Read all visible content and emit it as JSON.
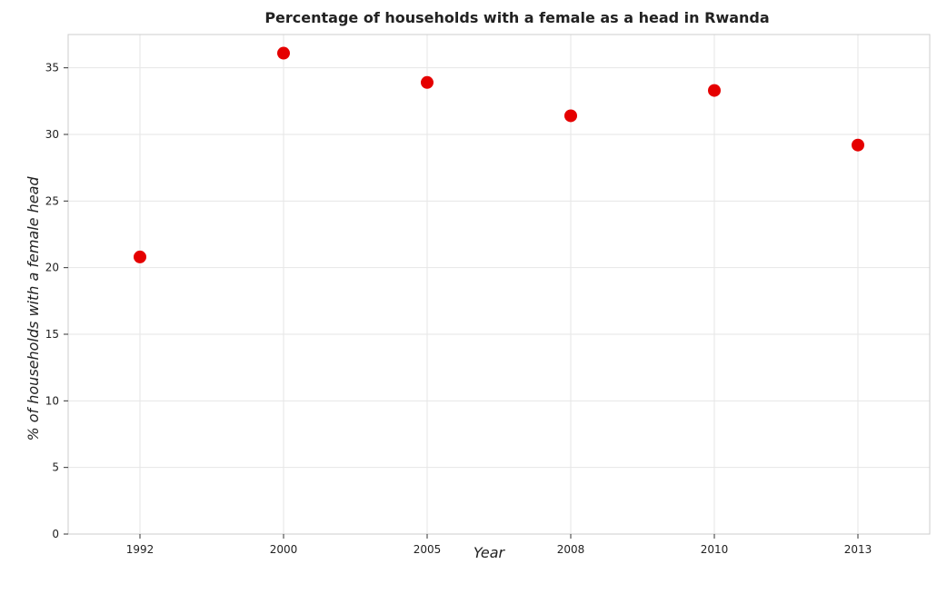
{
  "chart_data": {
    "type": "scatter",
    "title": "Percentage of households with a female as a head in Rwanda",
    "xlabel": "Year",
    "ylabel": "% of households with a female head",
    "categories": [
      "1992",
      "2000",
      "2005",
      "2008",
      "2010",
      "2013"
    ],
    "series": [
      {
        "values": [
          20.8,
          36.1,
          33.9,
          31.4,
          33.3,
          29.2
        ]
      }
    ],
    "ylim": [
      0,
      37.5
    ],
    "yticks": [
      0,
      5,
      10,
      15,
      20,
      25,
      30,
      35
    ],
    "grid": true,
    "marker_color": "#e50000"
  }
}
